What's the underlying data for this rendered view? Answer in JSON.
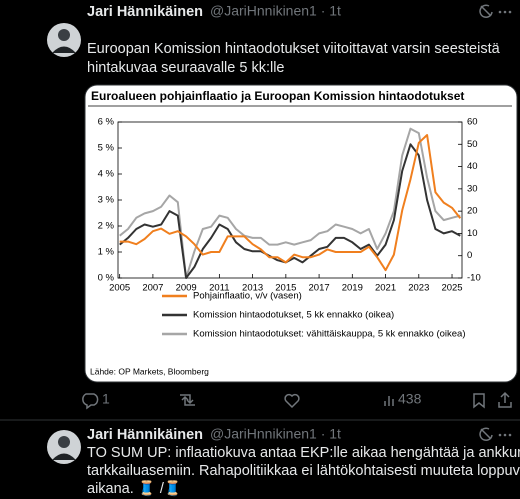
{
  "tweets": [
    {
      "name": "Jari Hännikäinen",
      "handle_line": "@JariHnnikinen1 · 1t",
      "text_lines": [
        "Euroopan Komission hintaodotukset viitoittavat varsin seesteistä",
        "hintakuvaa seuraavalle 5 kk:lle"
      ],
      "replies": "1",
      "views": "438"
    },
    {
      "name": "Jari Hännikäinen",
      "handle_line": "@JariHnnikinen1 · 1t",
      "text_lines": [
        "TO SUM UP: inflaatiokuva antaa EKP:lle aikaa hengähtää ja ankkuroitua",
        "tarkkailuasemiin. Rahapolitiikkaa ei lähtökohtaisesti muuteta loppuvuoden",
        "aikana. 🧵 /🧵"
      ]
    }
  ],
  "chart_data": {
    "type": "line",
    "title": "Euroalueen pohjainflaatio ja Euroopan Komission hintaodotukset",
    "source": "Lähde: OP Markets, Bloomberg",
    "x": [
      2005,
      2005.5,
      2006,
      2006.5,
      2007,
      2007.5,
      2008,
      2008.5,
      2009,
      2009.5,
      2010,
      2010.5,
      2011,
      2011.5,
      2012,
      2012.5,
      2013,
      2013.5,
      2014,
      2014.5,
      2015,
      2015.5,
      2016,
      2016.5,
      2017,
      2017.5,
      2018,
      2018.5,
      2019,
      2019.5,
      2020,
      2020.5,
      2021,
      2021.5,
      2022,
      2022.5,
      2023,
      2023.5,
      2024,
      2024.5,
      2025,
      2025.5
    ],
    "xlim": [
      2004.9,
      2025.6
    ],
    "xticks": [
      2005,
      2007,
      2009,
      2011,
      2013,
      2015,
      2017,
      2019,
      2021,
      2023,
      2025
    ],
    "ylim": [
      0,
      6
    ],
    "yticks": [
      {
        "value": 0,
        "label": "0 %"
      },
      {
        "value": 1,
        "label": "1 %"
      },
      {
        "value": 2,
        "label": "2 %"
      },
      {
        "value": 3,
        "label": "3 %"
      },
      {
        "value": 4,
        "label": "4 %"
      },
      {
        "value": 5,
        "label": "5 %"
      },
      {
        "value": 6,
        "label": "6 %"
      }
    ],
    "y2lim": [
      -10,
      60
    ],
    "y2ticks": [
      -10,
      0,
      10,
      20,
      30,
      40,
      50,
      60
    ],
    "series": [
      {
        "name": "Pohjainflaatio, v/v (vasen)",
        "color": "#f07f1e",
        "values": [
          1.4,
          1.4,
          1.3,
          1.5,
          1.8,
          1.9,
          1.7,
          1.8,
          1.6,
          1.3,
          0.9,
          1.0,
          1.0,
          1.6,
          1.6,
          1.6,
          1.3,
          1.1,
          0.8,
          0.8,
          0.6,
          0.9,
          0.8,
          0.8,
          0.9,
          1.1,
          1.0,
          1.0,
          1.0,
          1.0,
          1.2,
          0.8,
          0.3,
          0.9,
          2.6,
          3.8,
          5.2,
          5.5,
          3.3,
          2.9,
          2.7,
          2.3
        ]
      },
      {
        "name": "Komission hintaodotukset, 5 kk ennakko (oikea)",
        "color": "#333333",
        "axis": "y2",
        "values": [
          5,
          8,
          12,
          14,
          13,
          14,
          20,
          18,
          -10,
          -5,
          3,
          8,
          14,
          12,
          6,
          3,
          2,
          2,
          0,
          -2,
          -3,
          -1,
          -3,
          0,
          3,
          4,
          8,
          8,
          6,
          3,
          5,
          0,
          5,
          16,
          38,
          50,
          45,
          25,
          12,
          10,
          11,
          9
        ]
      },
      {
        "name": "Komission hintaodotukset: vähittäiskauppa, 5 kk ennakko (oikea)",
        "color": "#a6a6a6",
        "axis": "y2",
        "values": [
          9,
          12,
          17,
          19,
          20,
          22,
          27,
          24,
          -10,
          2,
          12,
          13,
          18,
          17,
          12,
          9,
          8,
          8,
          5,
          5,
          6,
          5,
          6,
          7,
          10,
          11,
          14,
          13,
          12,
          10,
          12,
          3,
          10,
          20,
          45,
          57,
          55,
          35,
          20,
          16,
          17,
          18
        ]
      }
    ]
  }
}
